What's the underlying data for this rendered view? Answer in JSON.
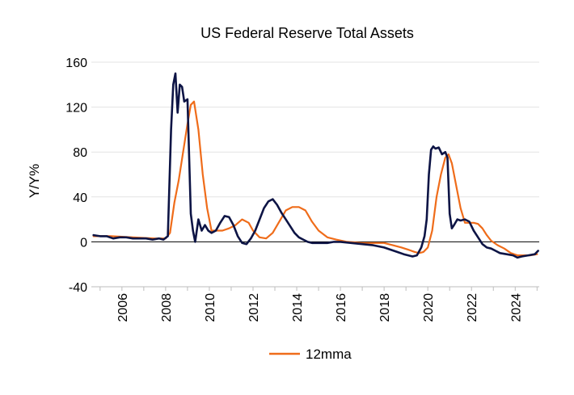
{
  "chart_data": {
    "type": "line",
    "title": "US Federal Reserve Total Assets",
    "ylabel": "Y/Y%",
    "xlabel": "",
    "ylim": [
      -40,
      160
    ],
    "xlim": [
      2004.6,
      2025.1
    ],
    "yticks": [
      "160",
      "120",
      "80",
      "40",
      "0",
      "-40"
    ],
    "ytick_values": [
      160,
      120,
      80,
      40,
      0,
      -40
    ],
    "xticks": [
      "2006",
      "2008",
      "2010",
      "2012",
      "2014",
      "2016",
      "2018",
      "2020",
      "2022",
      "2024"
    ],
    "xtick_values": [
      2006,
      2008,
      2010,
      2012,
      2014,
      2016,
      2018,
      2020,
      2022,
      2024
    ],
    "grid": "horizontal",
    "legend_position": "bottom",
    "series": [
      {
        "name": "",
        "color": "#0d1445",
        "x": [
          2004.7,
          2005.0,
          2005.3,
          2005.6,
          2005.9,
          2006.2,
          2006.5,
          2006.8,
          2007.1,
          2007.4,
          2007.7,
          2007.9,
          2008.1,
          2008.25,
          2008.35,
          2008.45,
          2008.55,
          2008.65,
          2008.75,
          2008.85,
          2009.0,
          2009.15,
          2009.25,
          2009.35,
          2009.5,
          2009.65,
          2009.8,
          2009.95,
          2010.1,
          2010.3,
          2010.5,
          2010.7,
          2010.9,
          2011.1,
          2011.3,
          2011.5,
          2011.7,
          2011.9,
          2012.1,
          2012.3,
          2012.5,
          2012.7,
          2012.9,
          2013.1,
          2013.3,
          2013.5,
          2013.7,
          2013.9,
          2014.1,
          2014.3,
          2014.5,
          2014.7,
          2014.9,
          2015.1,
          2015.4,
          2015.7,
          2016.0,
          2016.5,
          2017.0,
          2017.5,
          2018.0,
          2018.3,
          2018.6,
          2018.9,
          2019.1,
          2019.3,
          2019.5,
          2019.7,
          2019.85,
          2019.95,
          2020.05,
          2020.15,
          2020.25,
          2020.35,
          2020.5,
          2020.65,
          2020.8,
          2020.9,
          2021.0,
          2021.1,
          2021.2,
          2021.35,
          2021.5,
          2021.7,
          2021.9,
          2022.1,
          2022.3,
          2022.5,
          2022.7,
          2022.9,
          2023.1,
          2023.3,
          2023.6,
          2023.9,
          2024.1,
          2024.3,
          2024.6,
          2024.9,
          2025.05
        ],
        "y": [
          6,
          5,
          5,
          3,
          4,
          4,
          3,
          3,
          3,
          2,
          3,
          2,
          5,
          100,
          140,
          150,
          115,
          140,
          138,
          125,
          127,
          25,
          10,
          0,
          20,
          10,
          15,
          10,
          8,
          10,
          17,
          23,
          22,
          15,
          5,
          -1,
          -2,
          3,
          10,
          20,
          30,
          36,
          38,
          33,
          26,
          20,
          14,
          8,
          4,
          2,
          0,
          -1,
          -1,
          -1,
          -1,
          0,
          0,
          -1,
          -2,
          -3,
          -5,
          -7,
          -9,
          -11,
          -12,
          -13,
          -12,
          -5,
          5,
          20,
          60,
          82,
          85,
          83,
          84,
          78,
          80,
          75,
          25,
          12,
          15,
          20,
          19,
          20,
          18,
          10,
          4,
          -2,
          -5,
          -6,
          -8,
          -10,
          -11,
          -12,
          -14,
          -13,
          -12,
          -11,
          -8
        ]
      },
      {
        "name": "12mma",
        "color": "#ef6c1a",
        "x": [
          2004.7,
          2005.5,
          2006.5,
          2007.5,
          2008.0,
          2008.2,
          2008.4,
          2008.6,
          2008.8,
          2009.0,
          2009.15,
          2009.3,
          2009.5,
          2009.7,
          2009.9,
          2010.1,
          2010.3,
          2010.6,
          2010.9,
          2011.2,
          2011.5,
          2011.8,
          2012.0,
          2012.3,
          2012.6,
          2012.9,
          2013.2,
          2013.5,
          2013.8,
          2014.1,
          2014.4,
          2014.7,
          2015.0,
          2015.4,
          2015.8,
          2016.3,
          2017.0,
          2017.6,
          2018.0,
          2018.4,
          2018.8,
          2019.1,
          2019.4,
          2019.6,
          2019.8,
          2020.0,
          2020.2,
          2020.4,
          2020.6,
          2020.8,
          2020.95,
          2021.1,
          2021.3,
          2021.5,
          2021.7,
          2021.9,
          2022.1,
          2022.3,
          2022.5,
          2022.7,
          2022.9,
          2023.2,
          2023.5,
          2023.8,
          2024.1,
          2024.4,
          2024.7,
          2025.0
        ],
        "y": [
          5,
          5,
          4,
          3,
          3,
          8,
          35,
          55,
          80,
          105,
          122,
          125,
          100,
          60,
          30,
          10,
          10,
          10,
          12,
          15,
          20,
          17,
          10,
          4,
          3,
          8,
          18,
          28,
          31,
          31,
          28,
          18,
          10,
          4,
          2,
          0,
          -1,
          -1,
          -1,
          -3,
          -5,
          -7,
          -9,
          -10,
          -9,
          -5,
          10,
          40,
          60,
          75,
          78,
          70,
          50,
          30,
          17,
          17,
          17,
          16,
          12,
          6,
          1,
          -3,
          -6,
          -10,
          -12,
          -12,
          -12,
          -11
        ]
      }
    ]
  }
}
